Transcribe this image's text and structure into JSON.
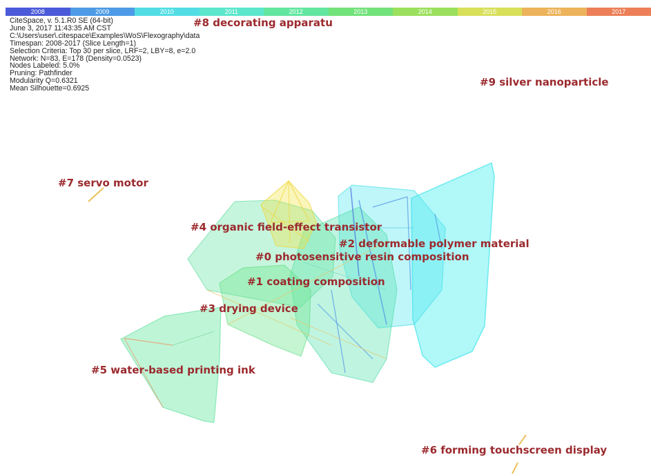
{
  "timeline": {
    "years": [
      "2008",
      "2009",
      "2010",
      "2011",
      "2012",
      "2013",
      "2014",
      "2015",
      "2016",
      "2017"
    ],
    "colors": [
      "#4a5ad8",
      "#4d9be6",
      "#52dde4",
      "#5ce6cc",
      "#63e6a0",
      "#72e27a",
      "#9be05c",
      "#d8e05a",
      "#ecb35a",
      "#ec7f58"
    ]
  },
  "info": {
    "lines": [
      "CiteSpace, v. 5.1.R0 SE (64-bit)",
      "June 3, 2017 11:43:35 AM CST",
      "C:\\Users\\user\\.citespace\\Examples\\WoS\\Flexography\\data",
      "Timespan: 2008-2017 (Slice Length=1)",
      "Selection Criteria: Top 30 per slice, LRF=2, LBY=8, e=2.0",
      "Network: N=83, E=178 (Density=0.0523)",
      "Nodes Labeled: 5.0%",
      "Pruning: Pathfinder",
      "Modularity Q=0.6321",
      "Mean Silhouette=0.6925"
    ]
  },
  "clusters": [
    {
      "id": "c8",
      "label": "#8 decorating apparatu",
      "color": "#ecb35a"
    },
    {
      "id": "c9",
      "label": "#9 silver nanoparticle",
      "color": "#ec7f58"
    },
    {
      "id": "c7",
      "label": "#7 servo motor",
      "color": "#ecc05a"
    },
    {
      "id": "c4",
      "label": "#4 organic field-effect transistor",
      "color": "#f2e23a"
    },
    {
      "id": "c2",
      "label": "#2 deformable polymer material",
      "color": "#44eef0"
    },
    {
      "id": "c0",
      "label": "#0 photosensitive resin composition",
      "color": "#5ce6c0"
    },
    {
      "id": "c1",
      "label": "#1 coating composition",
      "color": "#63e6a0"
    },
    {
      "id": "c3",
      "label": "#3 drying device",
      "color": "#72e2a0"
    },
    {
      "id": "c5",
      "label": "#5 water-based printing ink",
      "color": "#63e6a0"
    },
    {
      "id": "c6",
      "label": "#6 forming touchscreen display",
      "color": "#ecc05a"
    }
  ]
}
